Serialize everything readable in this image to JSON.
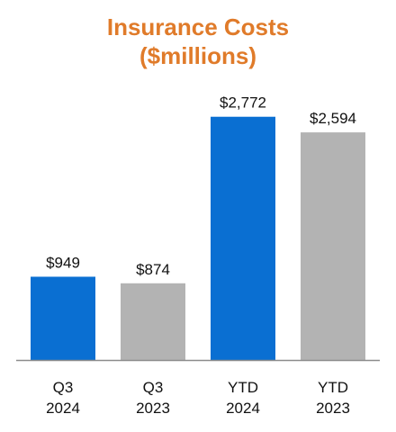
{
  "chart_data": {
    "type": "bar",
    "title_lines": [
      "Insurance Costs",
      "($millions)"
    ],
    "categories": [
      [
        "Q3",
        "2024"
      ],
      [
        "Q3",
        "2023"
      ],
      [
        "YTD",
        "2024"
      ],
      [
        "YTD",
        "2023"
      ]
    ],
    "values": [
      949,
      874,
      2772,
      2594
    ],
    "value_labels": [
      "$949",
      "$874",
      "$2,772",
      "$2,594"
    ],
    "bar_colors": [
      "#0a6fd2",
      "#b3b3b3",
      "#0a6fd2",
      "#b3b3b3"
    ],
    "title_color": "#e07b2a",
    "ylim": [
      0,
      2800
    ],
    "grid": false,
    "legend": "none"
  }
}
